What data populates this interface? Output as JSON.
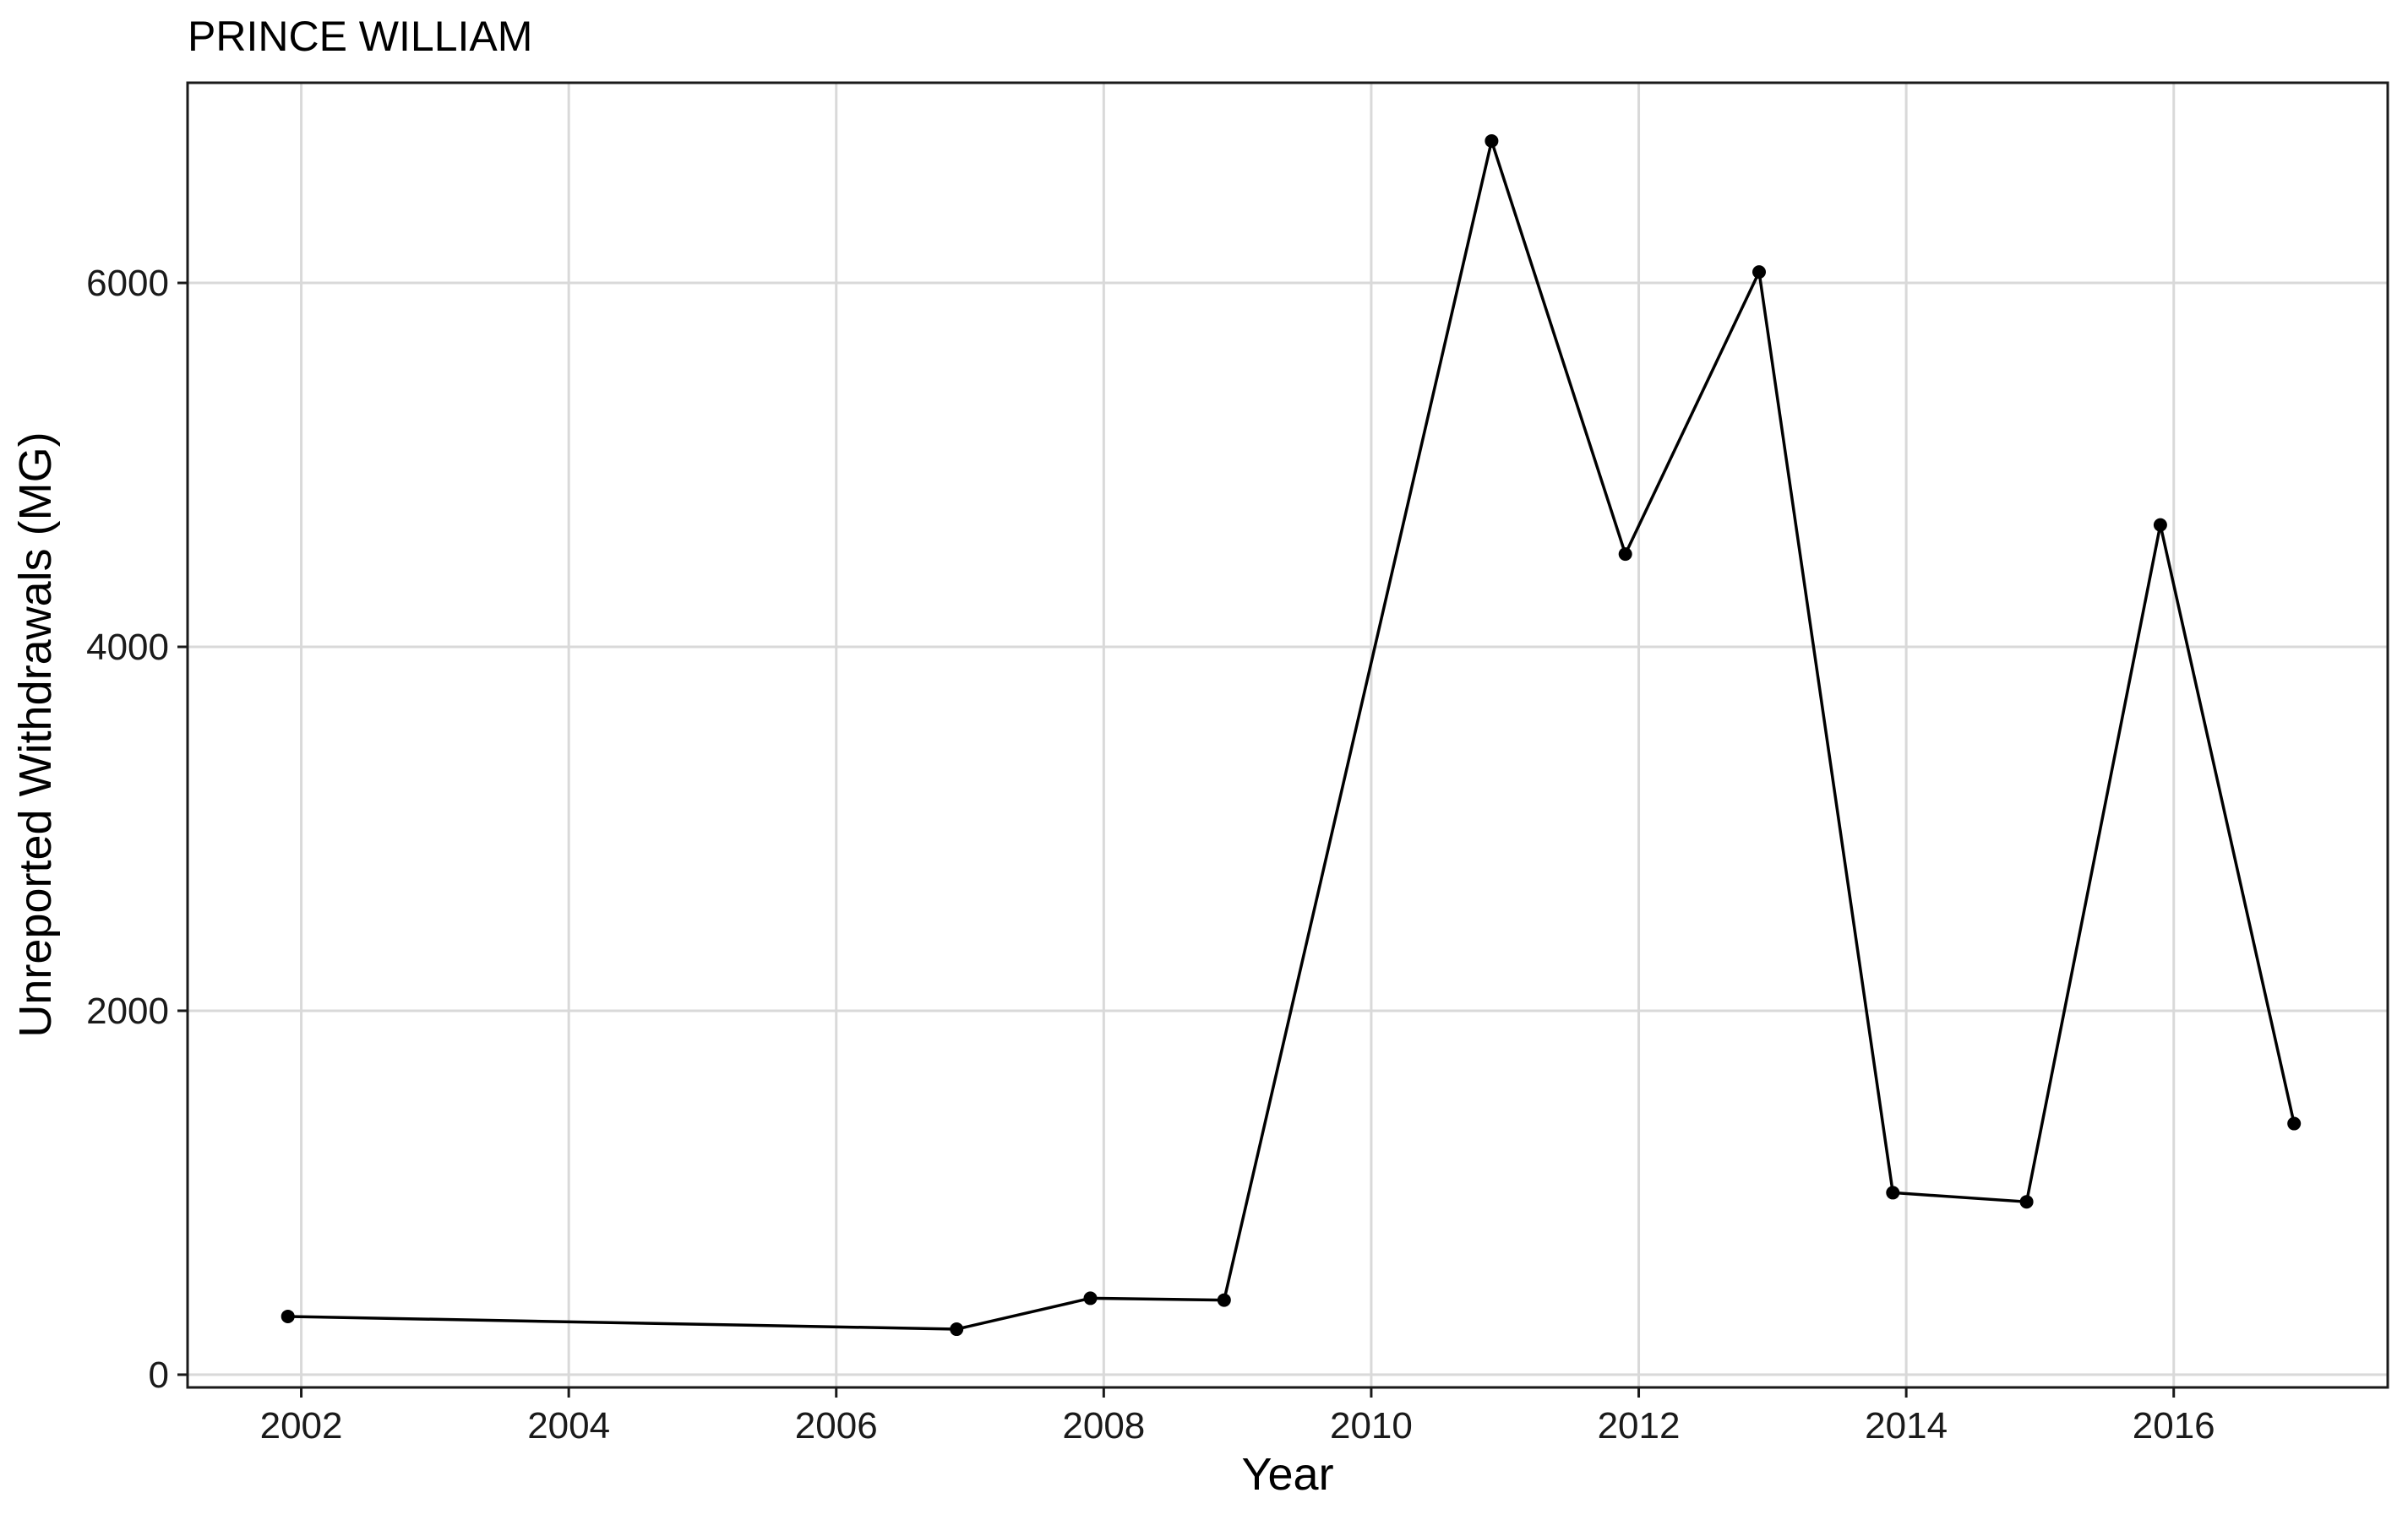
{
  "chart_data": {
    "type": "line",
    "title": "PRINCE WILLIAM",
    "xlabel": "Year",
    "ylabel": "Unreported Withdrawals (MG)",
    "x": [
      2001.9,
      2006.9,
      2007.9,
      2008.9,
      2010.9,
      2011.9,
      2012.9,
      2013.9,
      2014.9,
      2015.9,
      2016.9
    ],
    "y": [
      320,
      250,
      420,
      410,
      6780,
      4510,
      6060,
      1000,
      950,
      4670,
      1380
    ],
    "xlim": [
      2001.15,
      2017.6
    ],
    "ylim": [
      -70,
      7100
    ],
    "xticks": [
      2002,
      2004,
      2006,
      2008,
      2010,
      2012,
      2014,
      2016
    ],
    "xtick_labels": [
      "2002",
      "2004",
      "2006",
      "2008",
      "2010",
      "2012",
      "2014",
      "2016"
    ],
    "yticks": [
      0,
      2000,
      4000,
      6000
    ],
    "ytick_labels": [
      "0",
      "2000",
      "4000",
      "6000"
    ],
    "grid": true,
    "color": "#000000"
  }
}
